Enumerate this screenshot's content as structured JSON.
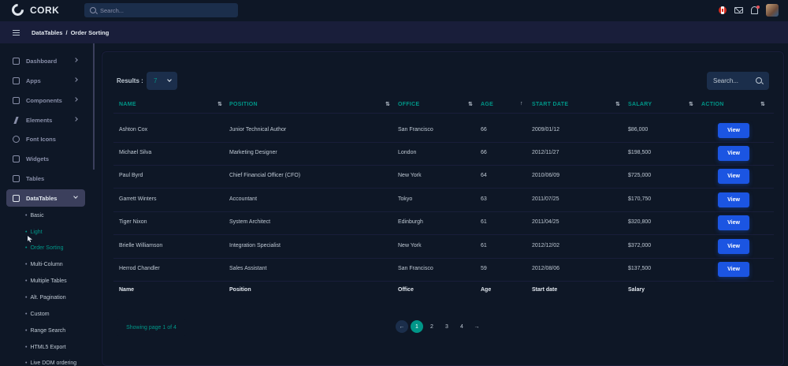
{
  "app": {
    "name": "CORK",
    "search_placeholder": "Search..."
  },
  "breadcrumb": {
    "parent": "DataTables",
    "separator": "/",
    "current": "Order Sorting"
  },
  "sidebar": {
    "items": [
      {
        "label": "Dashboard",
        "icon": "home-icon"
      },
      {
        "label": "Apps",
        "icon": "cpu-icon"
      },
      {
        "label": "Components",
        "icon": "box-icon"
      },
      {
        "label": "Elements",
        "icon": "zap-icon"
      },
      {
        "label": "Font Icons",
        "icon": "target-icon"
      },
      {
        "label": "Widgets",
        "icon": "airplay-icon"
      },
      {
        "label": "Tables",
        "icon": "layout-icon"
      },
      {
        "label": "DataTables",
        "icon": "layers-icon"
      }
    ],
    "sub_items": [
      "Basic",
      "Light",
      "Order Sorting",
      "Multi-Column",
      "Multiple Tables",
      "Alt. Pagination",
      "Custom",
      "Range Search",
      "HTML5 Export",
      "Live DOM ordering"
    ]
  },
  "table": {
    "results_label": "Results :",
    "results_value": "7",
    "search_placeholder": "Search...",
    "headers": [
      "NAME",
      "POSITION",
      "OFFICE",
      "AGE",
      "START DATE",
      "SALARY",
      "ACTION"
    ],
    "sort_glyph": "⇅",
    "sort_asc_glyph": "↑",
    "rows": [
      [
        "Ashton Cox",
        "Junior Technical Author",
        "San Francisco",
        "66",
        "2009/01/12",
        "$86,000"
      ],
      [
        "Michael Silva",
        "Marketing Designer",
        "London",
        "66",
        "2012/11/27",
        "$198,500"
      ],
      [
        "Paul Byrd",
        "Chief Financial Officer (CFO)",
        "New York",
        "64",
        "2010/06/09",
        "$725,000"
      ],
      [
        "Garrett Winters",
        "Accountant",
        "Tokyo",
        "63",
        "2011/07/25",
        "$170,750"
      ],
      [
        "Tiger Nixon",
        "System Architect",
        "Edinburgh",
        "61",
        "2011/04/25",
        "$320,800"
      ],
      [
        "Brielle Williamson",
        "Integration Specialist",
        "New York",
        "61",
        "2012/12/02",
        "$372,000"
      ],
      [
        "Herrod Chandler",
        "Sales Assistant",
        "San Francisco",
        "59",
        "2012/08/06",
        "$137,500"
      ]
    ],
    "view_label": "View",
    "footer": [
      "Name",
      "Position",
      "Office",
      "Age",
      "Start date",
      "Salary"
    ],
    "showing": "Showing page 1 of 4",
    "pages": [
      "1",
      "2",
      "3",
      "4"
    ],
    "prev_glyph": "←",
    "next_glyph": "→"
  }
}
